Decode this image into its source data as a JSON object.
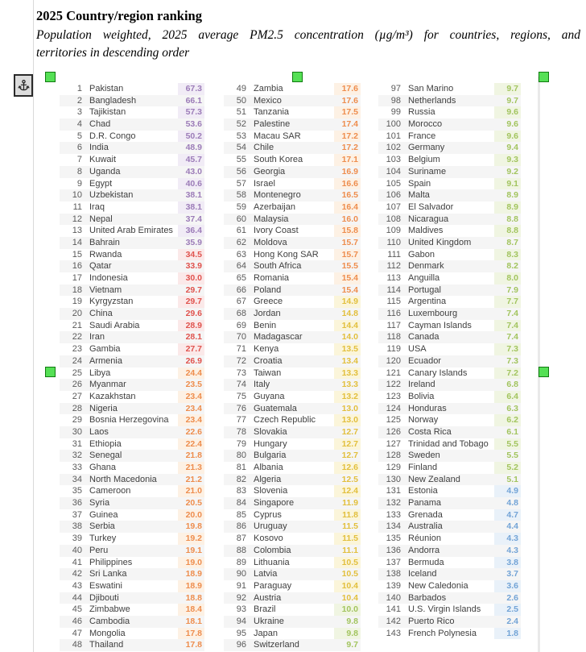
{
  "header": {
    "title": "2025 Country/region ranking",
    "subtitle_lines": [
      "Population weighted, 2025 average PM2.5 concentration (µg/m³) for countries, regions, and",
      "territories in descending order"
    ]
  },
  "editor": {
    "anchor_icon": "anchor-icon",
    "selection_handle_color": "#55e055"
  },
  "chart_data": {
    "type": "table",
    "title": "2025 Country/region ranking",
    "columns": [
      "Rank",
      "Country/region",
      "PM2.5 (µg/m³)"
    ],
    "color_scale": [
      {
        "max": 5,
        "text": "#72a3d6",
        "bg": "#e9f1f9"
      },
      {
        "max": 10,
        "text": "#a2c45e",
        "bg": "#f0f5e2"
      },
      {
        "max": 15,
        "text": "#e2bf3c",
        "bg": "#fbf5da"
      },
      {
        "max": 25,
        "text": "#ee8d4d",
        "bg": "#fdf1e4"
      },
      {
        "max": 35,
        "text": "#e0534e",
        "bg": "#fbe9e9"
      },
      {
        "max": 1000,
        "text": "#9c7cb8",
        "bg": "#f1ecf6"
      }
    ],
    "entries": [
      [
        1,
        "Pakistan",
        "67.3"
      ],
      [
        2,
        "Bangladesh",
        "66.1"
      ],
      [
        3,
        "Tajikistan",
        "57.3"
      ],
      [
        4,
        "Chad",
        "53.6"
      ],
      [
        5,
        "D.R. Congo",
        "50.2"
      ],
      [
        6,
        "India",
        "48.9"
      ],
      [
        7,
        "Kuwait",
        "45.7"
      ],
      [
        8,
        "Uganda",
        "43.0"
      ],
      [
        9,
        "Egypt",
        "40.6"
      ],
      [
        10,
        "Uzbekistan",
        "38.1"
      ],
      [
        11,
        "Iraq",
        "38.1"
      ],
      [
        12,
        "Nepal",
        "37.4"
      ],
      [
        13,
        "United Arab Emirates",
        "36.4"
      ],
      [
        14,
        "Bahrain",
        "35.9"
      ],
      [
        15,
        "Rwanda",
        "34.5"
      ],
      [
        16,
        "Qatar",
        "33.9"
      ],
      [
        17,
        "Indonesia",
        "30.0"
      ],
      [
        18,
        "Vietnam",
        "29.7"
      ],
      [
        19,
        "Kyrgyzstan",
        "29.7"
      ],
      [
        20,
        "China",
        "29.6"
      ],
      [
        21,
        "Saudi Arabia",
        "28.9"
      ],
      [
        22,
        "Iran",
        "28.1"
      ],
      [
        23,
        "Gambia",
        "27.7"
      ],
      [
        24,
        "Armenia",
        "26.9"
      ],
      [
        25,
        "Libya",
        "24.4"
      ],
      [
        26,
        "Myanmar",
        "23.5"
      ],
      [
        27,
        "Kazakhstan",
        "23.4"
      ],
      [
        28,
        "Nigeria",
        "23.4"
      ],
      [
        29,
        "Bosnia Herzegovina",
        "23.4"
      ],
      [
        30,
        "Laos",
        "22.6"
      ],
      [
        31,
        "Ethiopia",
        "22.4"
      ],
      [
        32,
        "Senegal",
        "21.8"
      ],
      [
        33,
        "Ghana",
        "21.3"
      ],
      [
        34,
        "North Macedonia",
        "21.2"
      ],
      [
        35,
        "Cameroon",
        "21.0"
      ],
      [
        36,
        "Syria",
        "20.5"
      ],
      [
        37,
        "Guinea",
        "20.0"
      ],
      [
        38,
        "Serbia",
        "19.8"
      ],
      [
        39,
        "Turkey",
        "19.2"
      ],
      [
        40,
        "Peru",
        "19.1"
      ],
      [
        41,
        "Philippines",
        "19.0"
      ],
      [
        42,
        "Sri Lanka",
        "18.9"
      ],
      [
        43,
        "Eswatini",
        "18.9"
      ],
      [
        44,
        "Djibouti",
        "18.8"
      ],
      [
        45,
        "Zimbabwe",
        "18.4"
      ],
      [
        46,
        "Cambodia",
        "18.1"
      ],
      [
        47,
        "Mongolia",
        "17.8"
      ],
      [
        48,
        "Thailand",
        "17.8"
      ],
      [
        49,
        "Zambia",
        "17.6"
      ],
      [
        50,
        "Mexico",
        "17.6"
      ],
      [
        51,
        "Tanzania",
        "17.5"
      ],
      [
        52,
        "Palestine",
        "17.4"
      ],
      [
        53,
        "Macau SAR",
        "17.2"
      ],
      [
        54,
        "Chile",
        "17.2"
      ],
      [
        55,
        "South Korea",
        "17.1"
      ],
      [
        56,
        "Georgia",
        "16.9"
      ],
      [
        57,
        "Israel",
        "16.6"
      ],
      [
        58,
        "Montenegro",
        "16.5"
      ],
      [
        59,
        "Azerbaijan",
        "16.4"
      ],
      [
        60,
        "Malaysia",
        "16.0"
      ],
      [
        61,
        "Ivory Coast",
        "15.8"
      ],
      [
        62,
        "Moldova",
        "15.7"
      ],
      [
        63,
        "Hong Kong SAR",
        "15.7"
      ],
      [
        64,
        "South Africa",
        "15.5"
      ],
      [
        65,
        "Romania",
        "15.4"
      ],
      [
        66,
        "Poland",
        "15.4"
      ],
      [
        67,
        "Greece",
        "14.9"
      ],
      [
        68,
        "Jordan",
        "14.8"
      ],
      [
        69,
        "Benin",
        "14.4"
      ],
      [
        70,
        "Madagascar",
        "14.0"
      ],
      [
        71,
        "Kenya",
        "13.5"
      ],
      [
        72,
        "Croatia",
        "13.4"
      ],
      [
        73,
        "Taiwan",
        "13.3"
      ],
      [
        74,
        "Italy",
        "13.3"
      ],
      [
        75,
        "Guyana",
        "13.2"
      ],
      [
        76,
        "Guatemala",
        "13.0"
      ],
      [
        77,
        "Czech Republic",
        "13.0"
      ],
      [
        78,
        "Slovakia",
        "12.7"
      ],
      [
        79,
        "Hungary",
        "12.7"
      ],
      [
        80,
        "Bulgaria",
        "12.7"
      ],
      [
        81,
        "Albania",
        "12.6"
      ],
      [
        82,
        "Algeria",
        "12.5"
      ],
      [
        83,
        "Slovenia",
        "12.4"
      ],
      [
        84,
        "Singapore",
        "11.9"
      ],
      [
        85,
        "Cyprus",
        "11.8"
      ],
      [
        86,
        "Uruguay",
        "11.5"
      ],
      [
        87,
        "Kosovo",
        "11.5"
      ],
      [
        88,
        "Colombia",
        "11.1"
      ],
      [
        89,
        "Lithuania",
        "10.5"
      ],
      [
        90,
        "Latvia",
        "10.5"
      ],
      [
        91,
        "Paraguay",
        "10.4"
      ],
      [
        92,
        "Austria",
        "10.4"
      ],
      [
        93,
        "Brazil",
        "10.0"
      ],
      [
        94,
        "Ukraine",
        "9.8"
      ],
      [
        95,
        "Japan",
        "9.8"
      ],
      [
        96,
        "Switzerland",
        "9.7"
      ],
      [
        97,
        "San Marino",
        "9.7"
      ],
      [
        98,
        "Netherlands",
        "9.7"
      ],
      [
        99,
        "Russia",
        "9.6"
      ],
      [
        100,
        "Morocco",
        "9.6"
      ],
      [
        101,
        "France",
        "9.6"
      ],
      [
        102,
        "Germany",
        "9.4"
      ],
      [
        103,
        "Belgium",
        "9.3"
      ],
      [
        104,
        "Suriname",
        "9.2"
      ],
      [
        105,
        "Spain",
        "9.1"
      ],
      [
        106,
        "Malta",
        "8.9"
      ],
      [
        107,
        "El Salvador",
        "8.9"
      ],
      [
        108,
        "Nicaragua",
        "8.8"
      ],
      [
        109,
        "Maldives",
        "8.8"
      ],
      [
        110,
        "United Kingdom",
        "8.7"
      ],
      [
        111,
        "Gabon",
        "8.3"
      ],
      [
        112,
        "Denmark",
        "8.2"
      ],
      [
        113,
        "Anguilla",
        "8.0"
      ],
      [
        114,
        "Portugal",
        "7.9"
      ],
      [
        115,
        "Argentina",
        "7.7"
      ],
      [
        116,
        "Luxembourg",
        "7.4"
      ],
      [
        117,
        "Cayman Islands",
        "7.4"
      ],
      [
        118,
        "Canada",
        "7.4"
      ],
      [
        119,
        "USA",
        "7.3"
      ],
      [
        120,
        "Ecuador",
        "7.3"
      ],
      [
        121,
        "Canary Islands",
        "7.2"
      ],
      [
        122,
        "Ireland",
        "6.8"
      ],
      [
        123,
        "Bolivia",
        "6.4"
      ],
      [
        124,
        "Honduras",
        "6.3"
      ],
      [
        125,
        "Norway",
        "6.2"
      ],
      [
        126,
        "Costa Rica",
        "6.1"
      ],
      [
        127,
        "Trinidad and Tobago",
        "5.5"
      ],
      [
        128,
        "Sweden",
        "5.5"
      ],
      [
        129,
        "Finland",
        "5.2"
      ],
      [
        130,
        "New Zealand",
        "5.1"
      ],
      [
        131,
        "Estonia",
        "4.9"
      ],
      [
        132,
        "Panama",
        "4.8"
      ],
      [
        133,
        "Grenada",
        "4.7"
      ],
      [
        134,
        "Australia",
        "4.4"
      ],
      [
        135,
        "Réunion",
        "4.3"
      ],
      [
        136,
        "Andorra",
        "4.3"
      ],
      [
        137,
        "Bermuda",
        "3.8"
      ],
      [
        138,
        "Iceland",
        "3.7"
      ],
      [
        139,
        "New Caledonia",
        "3.6"
      ],
      [
        140,
        "Barbados",
        "2.6"
      ],
      [
        141,
        "U.S. Virgin Islands",
        "2.5"
      ],
      [
        142,
        "Puerto Rico",
        "2.4"
      ],
      [
        143,
        "French Polynesia",
        "1.8"
      ]
    ]
  }
}
